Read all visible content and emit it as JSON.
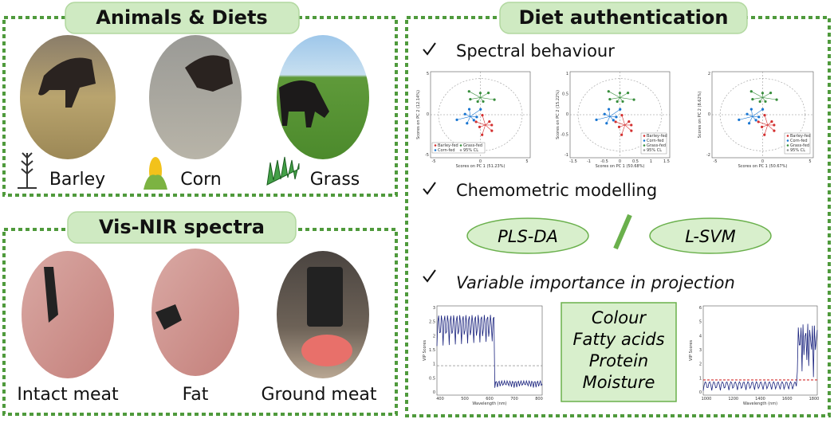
{
  "animals_diets": {
    "title": "Animals & Diets",
    "items": [
      "Barley",
      "Corn",
      "Grass"
    ]
  },
  "vis_nir_spectra": {
    "title": "Vis-NIR spectra",
    "items": [
      "Intact meat",
      "Fat",
      "Ground meat"
    ]
  },
  "diet_authentication": {
    "title": "Diet authentication",
    "spectral_behaviour": {
      "heading": "Spectral behaviour",
      "plots": [
        {
          "x_label": "Scores on PC 1 (51.23%)",
          "y_label": "Scores on PC 2 (12.14%)",
          "xticks": [
            "-5",
            "0",
            "5"
          ],
          "yticks": [
            "5",
            "0",
            "-5"
          ],
          "legend": [
            "Barley-fed",
            "Grass-fed",
            "Corn-fed",
            "95% CL"
          ]
        },
        {
          "x_label": "Scores on PC 1 (50.68%)",
          "y_label": "Scores on PC 2 (15.22%)",
          "xticks": [
            "-1.5",
            "-1",
            "-0.5",
            "0",
            "0.5",
            "1",
            "1.5"
          ],
          "yticks": [
            "1",
            "0.5",
            "0",
            "-0.5",
            "-1"
          ],
          "legend": [
            "Barley-fed",
            "Corn-fed",
            "Grass-fed",
            "95% CL"
          ]
        },
        {
          "x_label": "Scores on PC 1 (50.67%)",
          "y_label": "Scores on PC 2 (8.62%)",
          "xticks": [
            "-5",
            "0",
            "5"
          ],
          "yticks": [
            "2",
            "0",
            "-2"
          ],
          "legend": [
            "Barley-fed",
            "Corn-fed",
            "Grass-fed",
            "95% CL"
          ]
        }
      ]
    },
    "chemometric_modelling": {
      "heading": "Chemometric modelling",
      "models": [
        "PLS-DA",
        "L-SVM"
      ]
    },
    "variable_importance": {
      "heading": "Variable importance in projection",
      "plots": [
        {
          "x_label": "Wavelength (nm)",
          "y_label": "VIP Scores",
          "xticks": [
            "400",
            "500",
            "600",
            "700",
            "800"
          ],
          "yticks": [
            "3",
            "2.5",
            "2",
            "1.5",
            "1",
            "0.5",
            "0"
          ]
        },
        {
          "x_label": "Wavelength (nm)",
          "y_label": "VIP Scores",
          "xticks": [
            "1000",
            "1200",
            "1400",
            "1600",
            "1800"
          ],
          "yticks": [
            "6",
            "5",
            "4",
            "3",
            "2",
            "1",
            "0"
          ]
        }
      ],
      "attributes": [
        "Colour",
        "Fatty acids",
        "Protein",
        "Moisture"
      ]
    }
  }
}
